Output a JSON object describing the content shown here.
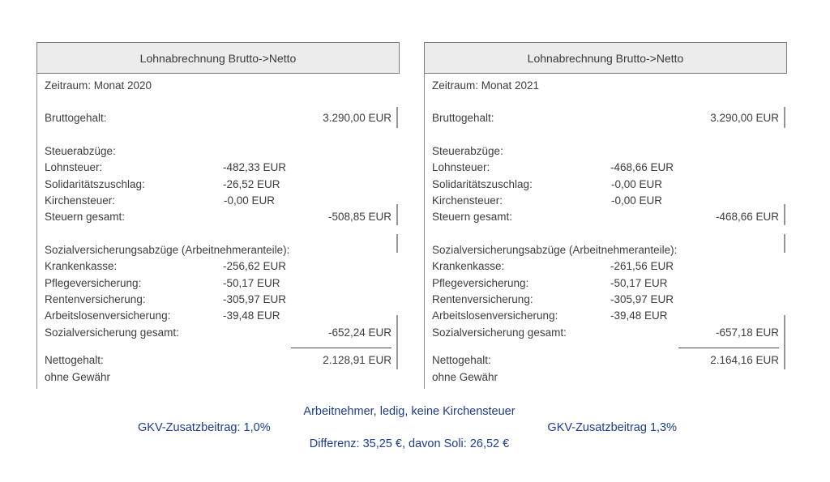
{
  "panels": [
    {
      "title": "Lohnabrechnung Brutto->Netto",
      "zeitraum": "Zeitraum: Monat 2020",
      "brutto_label": "Bruttogehalt:",
      "brutto_value": "3.290,00 EUR",
      "steuer_section_label": "Steuerabzüge:",
      "lohnsteuer_label": "Lohnsteuer:",
      "lohnsteuer_value": "-482,33 EUR",
      "soli_label": "Solidaritätszuschlag:",
      "soli_value": "-26,52 EUR",
      "kirchensteuer_label": "Kirchensteuer:",
      "kirchensteuer_value": "-0,00 EUR",
      "steuern_gesamt_label": "Steuern gesamt:",
      "steuern_gesamt_value": "-508,85 EUR",
      "sozial_section_label": "Sozialversicherungsabzüge (Arbeitnehmeranteile):",
      "krankenkasse_label": "Krankenkasse:",
      "krankenkasse_value": "-256,62 EUR",
      "pflege_label": "Pflegeversicherung:",
      "pflege_value": "-50,17 EUR",
      "renten_label": "Rentenversicherung:",
      "renten_value": "-305,97 EUR",
      "arbeitslosen_label": "Arbeitslosenversicherung:",
      "arbeitslosen_value": "-39,48 EUR",
      "sozial_gesamt_label": "Sozialversicherung gesamt:",
      "sozial_gesamt_value": "-652,24 EUR",
      "netto_label": "Nettogehalt:",
      "netto_value": "2.128,91 EUR",
      "disclaimer": "ohne Gewähr"
    },
    {
      "title": "Lohnabrechnung Brutto->Netto",
      "zeitraum": "Zeitraum: Monat 2021",
      "brutto_label": "Bruttogehalt:",
      "brutto_value": "3.290,00 EUR",
      "steuer_section_label": "Steuerabzüge:",
      "lohnsteuer_label": "Lohnsteuer:",
      "lohnsteuer_value": "-468,66 EUR",
      "soli_label": "Solidaritätszuschlag:",
      "soli_value": "-0,00 EUR",
      "kirchensteuer_label": "Kirchensteuer:",
      "kirchensteuer_value": "-0,00 EUR",
      "steuern_gesamt_label": "Steuern gesamt:",
      "steuern_gesamt_value": "-468,66 EUR",
      "sozial_section_label": "Sozialversicherungsabzüge (Arbeitnehmeranteile):",
      "krankenkasse_label": "Krankenkasse:",
      "krankenkasse_value": "-261,56 EUR",
      "pflege_label": "Pflegeversicherung:",
      "pflege_value": "-50,17 EUR",
      "renten_label": "Rentenversicherung:",
      "renten_value": "-305,97 EUR",
      "arbeitslosen_label": "Arbeitslosenversicherung:",
      "arbeitslosen_value": "-39,48 EUR",
      "sozial_gesamt_label": "Sozialversicherung gesamt:",
      "sozial_gesamt_value": "-657,18 EUR",
      "netto_label": "Nettogehalt:",
      "netto_value": "2.164,16 EUR",
      "disclaimer": "ohne Gewähr"
    }
  ],
  "footer": {
    "line1": "Arbeitnehmer, ledig, keine Kirchensteuer",
    "line2_left": "GKV-Zusatzbeitrag: 1,0%",
    "line2_right": "GKV-Zusatzbeitrag 1,3%",
    "line3": "Differenz: 35,25 €, davon Soli: 26,52 €"
  },
  "colors": {
    "footer_text": "#1e3d8f",
    "header_background": "#ececec",
    "header_border": "#7a7a7a",
    "body_text": "#3d3d3d"
  }
}
